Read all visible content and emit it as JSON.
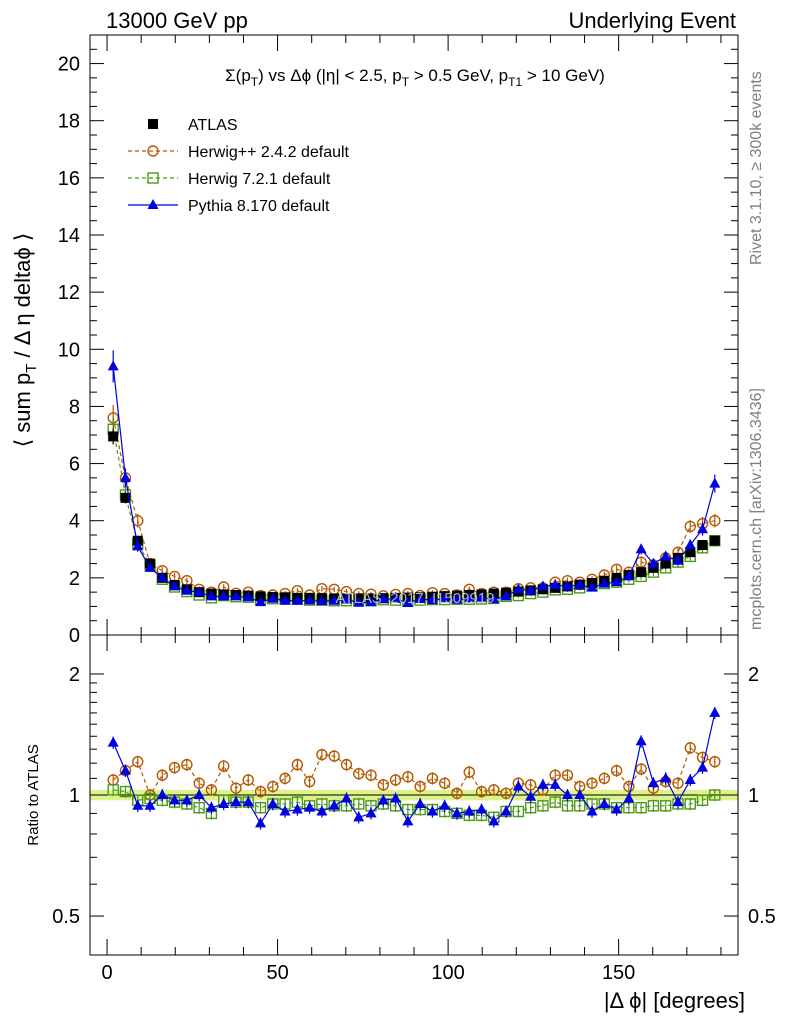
{
  "header": {
    "left": "13000 GeV pp",
    "right": "Underlying Event"
  },
  "side_labels": {
    "rivet": "Rivet 3.1.10, ≥ 300k events",
    "mcplots": "mcplots.cern.ch [arXiv:1306.3436]"
  },
  "watermark": "ATLAS_2017_I1509919",
  "colors": {
    "atlas": "#000000",
    "herwigpp": "#b35900",
    "herwig7": "#4c9a1a",
    "pythia": "#0000e0",
    "band": "#ddf28a"
  },
  "chart_data": [
    {
      "type": "scatter",
      "panel": "main",
      "title_parts": {
        "sigma": "Σ(p",
        "t1": "T",
        "rest1": ") vs Δϕ (|η| < 2.5, p",
        "t2": "T",
        "rest2": " > 0.5 GeV, p",
        "t3": "T1",
        "rest3": " > 10 GeV)"
      },
      "ylabel": "⟨ sum p_T / Δ η deltaϕ ⟩",
      "xlim": [
        -5,
        185
      ],
      "ylim": [
        0,
        21
      ],
      "yticks": [
        "0",
        "2",
        "4",
        "6",
        "8",
        "10",
        "12",
        "14",
        "16",
        "18",
        "20"
      ],
      "legend": [
        "ATLAS",
        "Herwig++ 2.4.2 default",
        "Herwig 7.2.1 default",
        "Pythia 8.170 default"
      ],
      "legend_position": "top-left",
      "x": [
        1.8,
        5.4,
        9,
        12.6,
        16.2,
        19.8,
        23.4,
        27,
        30.6,
        34.2,
        37.8,
        41.4,
        45,
        48.6,
        52.2,
        55.8,
        59.4,
        63,
        66.6,
        70.2,
        73.8,
        77.4,
        81,
        84.6,
        88.2,
        91.8,
        95.4,
        99,
        102.6,
        106.2,
        109.8,
        113.4,
        117,
        120.6,
        124.2,
        127.8,
        131.4,
        135,
        138.6,
        142.2,
        145.8,
        149.4,
        153,
        156.6,
        160.2,
        163.8,
        167.4,
        171,
        174.6,
        178.2
      ],
      "series": [
        {
          "name": "ATLAS",
          "values": [
            6.95,
            4.8,
            3.3,
            2.5,
            2.0,
            1.75,
            1.6,
            1.5,
            1.45,
            1.42,
            1.4,
            1.38,
            1.35,
            1.33,
            1.32,
            1.3,
            1.3,
            1.29,
            1.28,
            1.28,
            1.28,
            1.28,
            1.29,
            1.3,
            1.31,
            1.32,
            1.34,
            1.36,
            1.38,
            1.4,
            1.42,
            1.45,
            1.48,
            1.52,
            1.56,
            1.6,
            1.65,
            1.7,
            1.76,
            1.82,
            1.9,
            2.0,
            2.1,
            2.2,
            2.35,
            2.5,
            2.7,
            2.9,
            3.15,
            3.3
          ]
        },
        {
          "name": "Herwig++ 2.4.2 default",
          "values": [
            7.6,
            5.5,
            4.0,
            2.5,
            2.25,
            2.05,
            1.9,
            1.6,
            1.5,
            1.68,
            1.46,
            1.5,
            1.38,
            1.4,
            1.45,
            1.55,
            1.4,
            1.62,
            1.6,
            1.52,
            1.45,
            1.43,
            1.37,
            1.42,
            1.45,
            1.38,
            1.48,
            1.45,
            1.4,
            1.6,
            1.45,
            1.5,
            1.5,
            1.62,
            1.65,
            1.65,
            1.85,
            1.9,
            1.85,
            1.95,
            2.1,
            2.3,
            2.2,
            2.55,
            2.45,
            2.7,
            2.9,
            3.8,
            3.9,
            4.0
          ]
        },
        {
          "name": "Herwig 7.2.1 default",
          "values": [
            7.2,
            4.9,
            3.2,
            2.45,
            1.95,
            1.68,
            1.52,
            1.4,
            1.3,
            1.38,
            1.34,
            1.32,
            1.25,
            1.27,
            1.26,
            1.25,
            1.22,
            1.22,
            1.2,
            1.2,
            1.22,
            1.2,
            1.23,
            1.22,
            1.2,
            1.22,
            1.24,
            1.24,
            1.25,
            1.25,
            1.26,
            1.28,
            1.35,
            1.38,
            1.45,
            1.5,
            1.58,
            1.6,
            1.65,
            1.72,
            1.8,
            1.85,
            1.95,
            2.05,
            2.2,
            2.35,
            2.55,
            2.75,
            3.05,
            3.3
          ]
        },
        {
          "name": "Pythia 8.170 default",
          "values": [
            9.4,
            5.5,
            3.1,
            2.35,
            2.0,
            1.7,
            1.55,
            1.5,
            1.35,
            1.35,
            1.35,
            1.32,
            1.15,
            1.27,
            1.2,
            1.2,
            1.21,
            1.18,
            1.2,
            1.25,
            1.13,
            1.15,
            1.25,
            1.27,
            1.12,
            1.26,
            1.22,
            1.28,
            1.24,
            1.28,
            1.31,
            1.25,
            1.35,
            1.6,
            1.55,
            1.7,
            1.75,
            1.7,
            1.75,
            1.66,
            1.8,
            1.85,
            2.05,
            3.0,
            2.5,
            2.75,
            2.6,
            3.15,
            3.7,
            5.3
          ]
        }
      ]
    },
    {
      "type": "scatter",
      "panel": "ratio",
      "ylabel": "Ratio to ATLAS",
      "xlabel": "|Δ ϕ| [degrees]",
      "ylim": [
        0.4,
        2.5
      ],
      "ylog": true,
      "yticks": [
        "0.5",
        "1",
        "2"
      ],
      "xticks": [
        "0",
        "50",
        "100",
        "150"
      ],
      "reference_band": [
        0.97,
        1.03
      ],
      "series": [
        {
          "name": "Herwig++ 2.4.2 default",
          "values": [
            1.09,
            1.15,
            1.21,
            1.0,
            1.12,
            1.17,
            1.19,
            1.07,
            1.03,
            1.18,
            1.04,
            1.09,
            1.02,
            1.05,
            1.1,
            1.19,
            1.08,
            1.26,
            1.25,
            1.19,
            1.13,
            1.12,
            1.06,
            1.09,
            1.11,
            1.05,
            1.1,
            1.07,
            1.01,
            1.14,
            1.02,
            1.03,
            1.01,
            1.07,
            1.06,
            1.03,
            1.12,
            1.12,
            1.05,
            1.07,
            1.1,
            1.15,
            1.05,
            1.16,
            1.04,
            1.08,
            1.07,
            1.31,
            1.24,
            1.21
          ]
        },
        {
          "name": "Herwig 7.2.1 default",
          "values": [
            1.03,
            1.02,
            0.97,
            0.98,
            0.97,
            0.96,
            0.95,
            0.93,
            0.9,
            0.97,
            0.96,
            0.96,
            0.93,
            0.95,
            0.95,
            0.96,
            0.94,
            0.95,
            0.94,
            0.94,
            0.95,
            0.94,
            0.95,
            0.94,
            0.92,
            0.92,
            0.92,
            0.91,
            0.9,
            0.89,
            0.89,
            0.88,
            0.91,
            0.91,
            0.93,
            0.94,
            0.96,
            0.94,
            0.94,
            0.95,
            0.95,
            0.93,
            0.93,
            0.93,
            0.94,
            0.94,
            0.95,
            0.95,
            0.97,
            1.0
          ]
        },
        {
          "name": "Pythia 8.170 default",
          "values": [
            1.35,
            1.15,
            0.94,
            0.94,
            1.0,
            0.97,
            0.97,
            1.0,
            0.93,
            0.95,
            0.96,
            0.96,
            0.85,
            0.95,
            0.91,
            0.92,
            0.93,
            0.91,
            0.94,
            0.98,
            0.88,
            0.9,
            0.97,
            0.98,
            0.86,
            0.95,
            0.91,
            0.94,
            0.9,
            0.91,
            0.92,
            0.86,
            0.91,
            1.05,
            0.99,
            1.06,
            1.06,
            1.0,
            1.0,
            0.91,
            0.95,
            0.92,
            0.98,
            1.36,
            1.07,
            1.1,
            0.96,
            1.09,
            1.17,
            1.6
          ]
        }
      ]
    }
  ]
}
